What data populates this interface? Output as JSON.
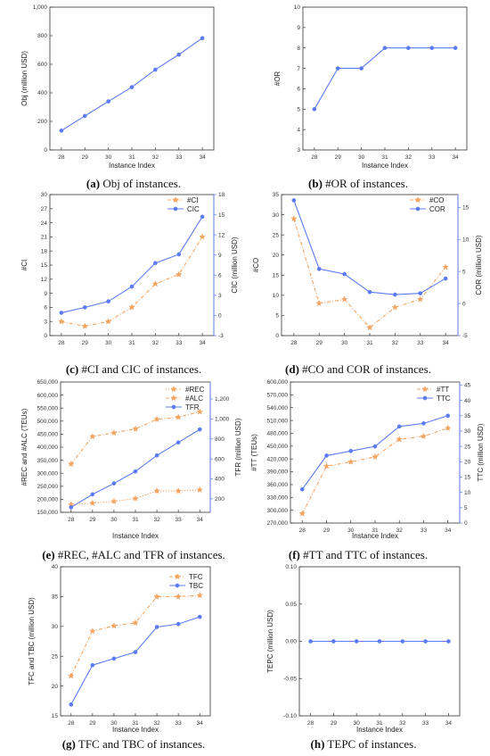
{
  "colors": {
    "orange": "#f4a460",
    "blue": "#5b7cf5",
    "axis": "#333333"
  },
  "chart_data": [
    {
      "id": "a",
      "type": "line",
      "caption_bold": "(a)",
      "caption_text": " Obj of instances.",
      "xlabel": "Instance Index",
      "ylabel": "Obj (million USD)",
      "ylabel_right": "",
      "categories": [
        "28",
        "29",
        "30",
        "31",
        "32",
        "33",
        "34"
      ],
      "ylim": [
        0,
        1000
      ],
      "yticks": [
        "0",
        "200",
        "400",
        "600",
        "800",
        "1,000"
      ],
      "ytick_values": [
        0,
        200,
        400,
        600,
        800,
        1000
      ],
      "series": [
        {
          "values": [
            135,
            238,
            340,
            440,
            562,
            668,
            783
          ],
          "color": "blue",
          "axis": "left",
          "style": "solid",
          "marker": "circle"
        }
      ],
      "legend": []
    },
    {
      "id": "b",
      "type": "line",
      "caption_bold": "(b)",
      "caption_text": " #OR of instances.",
      "xlabel": "Instance Index",
      "ylabel": "#OR",
      "ylabel_right": "",
      "categories": [
        "28",
        "29",
        "30",
        "31",
        "32",
        "33",
        "34"
      ],
      "ylim": [
        3,
        10
      ],
      "yticks": [
        "3",
        "4",
        "5",
        "6",
        "7",
        "8",
        "9",
        "10"
      ],
      "ytick_values": [
        3,
        4,
        5,
        6,
        7,
        8,
        9,
        10
      ],
      "series": [
        {
          "values": [
            5,
            7,
            7,
            8,
            8,
            8,
            8
          ],
          "color": "blue",
          "axis": "left",
          "style": "solid",
          "marker": "circle"
        }
      ],
      "legend": []
    },
    {
      "id": "c",
      "type": "line",
      "caption_bold": "(c)",
      "caption_text": " #CI and CIC of instances.",
      "xlabel": "",
      "ylabel": "#CI",
      "ylabel_right": "CIC (million USD)",
      "categories": [
        "28",
        "29",
        "30",
        "31",
        "32",
        "33",
        "34"
      ],
      "ylim": [
        0,
        30
      ],
      "yticks": [
        "0",
        "3",
        "6",
        "9",
        "12",
        "15",
        "18",
        "21",
        "24",
        "27",
        "30"
      ],
      "ytick_values": [
        0,
        3,
        6,
        9,
        12,
        15,
        18,
        21,
        24,
        27,
        30
      ],
      "ylim_right": [
        -3,
        18
      ],
      "yticks_right": [
        "-3",
        "0",
        "3",
        "6",
        "9",
        "12",
        "15",
        "18"
      ],
      "ytick_values_right": [
        -3,
        0,
        3,
        6,
        9,
        12,
        15,
        18
      ],
      "series": [
        {
          "name": "#CI",
          "values": [
            3,
            2,
            3,
            6,
            11,
            13,
            21
          ],
          "color": "orange",
          "axis": "left",
          "style": "dashed",
          "marker": "star"
        },
        {
          "name": "CIC",
          "values": [
            0.4,
            1.2,
            2.1,
            4.3,
            7.8,
            9.1,
            14.7
          ],
          "color": "blue",
          "axis": "right",
          "style": "solid",
          "marker": "circle"
        }
      ],
      "legend": [
        "#CI",
        "CIC"
      ]
    },
    {
      "id": "d",
      "type": "line",
      "caption_bold": "(d)",
      "caption_text": " #CO and COR of instances.",
      "xlabel": "",
      "ylabel": "#CO",
      "ylabel_right": "COR (million USD)",
      "categories": [
        "28",
        "29",
        "30",
        "31",
        "32",
        "33",
        "34"
      ],
      "ylim": [
        0,
        35
      ],
      "yticks": [
        "0",
        "5",
        "10",
        "15",
        "20",
        "25",
        "30",
        "35"
      ],
      "ytick_values": [
        0,
        5,
        10,
        15,
        20,
        25,
        30,
        35
      ],
      "ylim_right": [
        -5,
        17
      ],
      "yticks_right": [
        "-5",
        "0",
        "5",
        "10",
        "15"
      ],
      "ytick_values_right": [
        -5,
        0,
        5,
        10,
        15
      ],
      "series": [
        {
          "name": "#CO",
          "values": [
            29,
            8,
            9,
            2,
            7,
            9,
            17
          ],
          "color": "orange",
          "axis": "left",
          "style": "dashed",
          "marker": "star"
        },
        {
          "name": "COR",
          "values": [
            16.1,
            5.4,
            4.6,
            1.8,
            1.4,
            1.6,
            3.9
          ],
          "color": "blue",
          "axis": "right",
          "style": "solid",
          "marker": "circle"
        }
      ],
      "legend": [
        "#CO",
        "COR"
      ]
    },
    {
      "id": "e",
      "type": "line",
      "caption_bold": "(e)",
      "caption_text": " #REC, #ALC and TFR of instances.",
      "xlabel": "Instance Index",
      "ylabel": "#REC and #ALC (TEUs)",
      "ylabel_right": "TFR (million USD)",
      "categories": [
        "28",
        "29",
        "30",
        "31",
        "32",
        "33",
        "34"
      ],
      "ylim": [
        150000,
        650000
      ],
      "yticks": [
        "150,000",
        "200,000",
        "250,000",
        "300,000",
        "350,000",
        "400,000",
        "450,000",
        "500,000",
        "550,000",
        "600,000",
        "650,000"
      ],
      "ytick_values": [
        150000,
        200000,
        250000,
        300000,
        350000,
        400000,
        450000,
        500000,
        550000,
        600000,
        650000
      ],
      "ylim_right": [
        65,
        1370
      ],
      "yticks_right": [
        "200",
        "400",
        "600",
        "800",
        "1,000",
        "1,200"
      ],
      "ytick_values_right": [
        200,
        400,
        600,
        800,
        1000,
        1200
      ],
      "series": [
        {
          "name": "#REC",
          "values": [
            180000,
            185000,
            192000,
            203000,
            232000,
            232000,
            236000
          ],
          "color": "orange",
          "axis": "left",
          "style": "dotted",
          "marker": "star"
        },
        {
          "name": "#ALC",
          "values": [
            335000,
            441000,
            455000,
            470000,
            507000,
            515000,
            536000
          ],
          "color": "orange",
          "axis": "left",
          "style": "dashed",
          "marker": "star"
        },
        {
          "name": "TFR",
          "values": [
            115,
            245,
            355,
            475,
            635,
            765,
            895
          ],
          "color": "blue",
          "axis": "right",
          "style": "solid",
          "marker": "circle"
        }
      ],
      "legend": [
        "#REC",
        "#ALC",
        "TFR"
      ]
    },
    {
      "id": "f",
      "type": "line",
      "caption_bold": "(f)",
      "caption_text": " #TT and TTC of instances.",
      "xlabel": "Instance Index",
      "ylabel": "#TT (TEUs)",
      "ylabel_right": "TTC (million USD)",
      "categories": [
        "28",
        "29",
        "30",
        "31",
        "32",
        "33",
        "34"
      ],
      "ylim": [
        270000,
        600000
      ],
      "yticks": [
        "270,000",
        "300,000",
        "330,000",
        "360,000",
        "390,000",
        "420,000",
        "450,000",
        "480,000",
        "510,000",
        "540,000",
        "570,000",
        "600,000"
      ],
      "ytick_values": [
        270000,
        300000,
        330000,
        360000,
        390000,
        420000,
        450000,
        480000,
        510000,
        540000,
        570000,
        600000
      ],
      "ylim_right": [
        0,
        46
      ],
      "yticks_right": [
        "0",
        "5",
        "10",
        "15",
        "20",
        "25",
        "30",
        "35",
        "40",
        "45"
      ],
      "ytick_values_right": [
        0,
        5,
        10,
        15,
        20,
        25,
        30,
        35,
        40,
        45
      ],
      "series": [
        {
          "name": "#TT",
          "values": [
            292000,
            403000,
            413000,
            425000,
            466000,
            473000,
            492000
          ],
          "color": "orange",
          "axis": "left",
          "style": "dashed",
          "marker": "star"
        },
        {
          "name": "TTC",
          "values": [
            11,
            22,
            23.5,
            25,
            31.5,
            32.5,
            35
          ],
          "color": "blue",
          "axis": "right",
          "style": "solid",
          "marker": "circle"
        }
      ],
      "legend": [
        "#TT",
        "TTC"
      ]
    },
    {
      "id": "g",
      "type": "line",
      "caption_bold": "(g)",
      "caption_text": " TFC and TBC of instances.",
      "xlabel": "Instance Index",
      "ylabel": "TFC and TBC (million USD)",
      "ylabel_right": "",
      "categories": [
        "28",
        "29",
        "30",
        "31",
        "32",
        "33",
        "34"
      ],
      "ylim": [
        15,
        40
      ],
      "yticks": [
        "15",
        "20",
        "25",
        "30",
        "35",
        "40"
      ],
      "ytick_values": [
        15,
        20,
        25,
        30,
        35,
        40
      ],
      "series": [
        {
          "name": "TFC",
          "values": [
            21.7,
            29.2,
            30.1,
            30.6,
            35,
            35,
            35.2
          ],
          "color": "orange",
          "axis": "left",
          "style": "dashed",
          "marker": "star"
        },
        {
          "name": "TBC",
          "values": [
            16.9,
            23.5,
            24.6,
            25.7,
            29.9,
            30.4,
            31.6
          ],
          "color": "blue",
          "axis": "left",
          "style": "solid",
          "marker": "circle"
        }
      ],
      "legend": [
        "TFC",
        "TBC"
      ]
    },
    {
      "id": "h",
      "type": "line",
      "caption_bold": "(h)",
      "caption_text": " TEPC of instances.",
      "xlabel": "Instance Index",
      "ylabel": "TEPC (million USD)",
      "ylabel_right": "",
      "categories": [
        "28",
        "29",
        "30",
        "31",
        "32",
        "33",
        "34"
      ],
      "ylim": [
        -0.1,
        0.1
      ],
      "yticks": [
        "-0.10",
        "-0.05",
        "0.00",
        "0.05",
        "0.10"
      ],
      "ytick_values": [
        -0.1,
        -0.05,
        0,
        0.05,
        0.1
      ],
      "series": [
        {
          "values": [
            0,
            0,
            0,
            0,
            0,
            0,
            0
          ],
          "color": "blue",
          "axis": "left",
          "style": "solid",
          "marker": "circle"
        }
      ],
      "legend": []
    }
  ]
}
